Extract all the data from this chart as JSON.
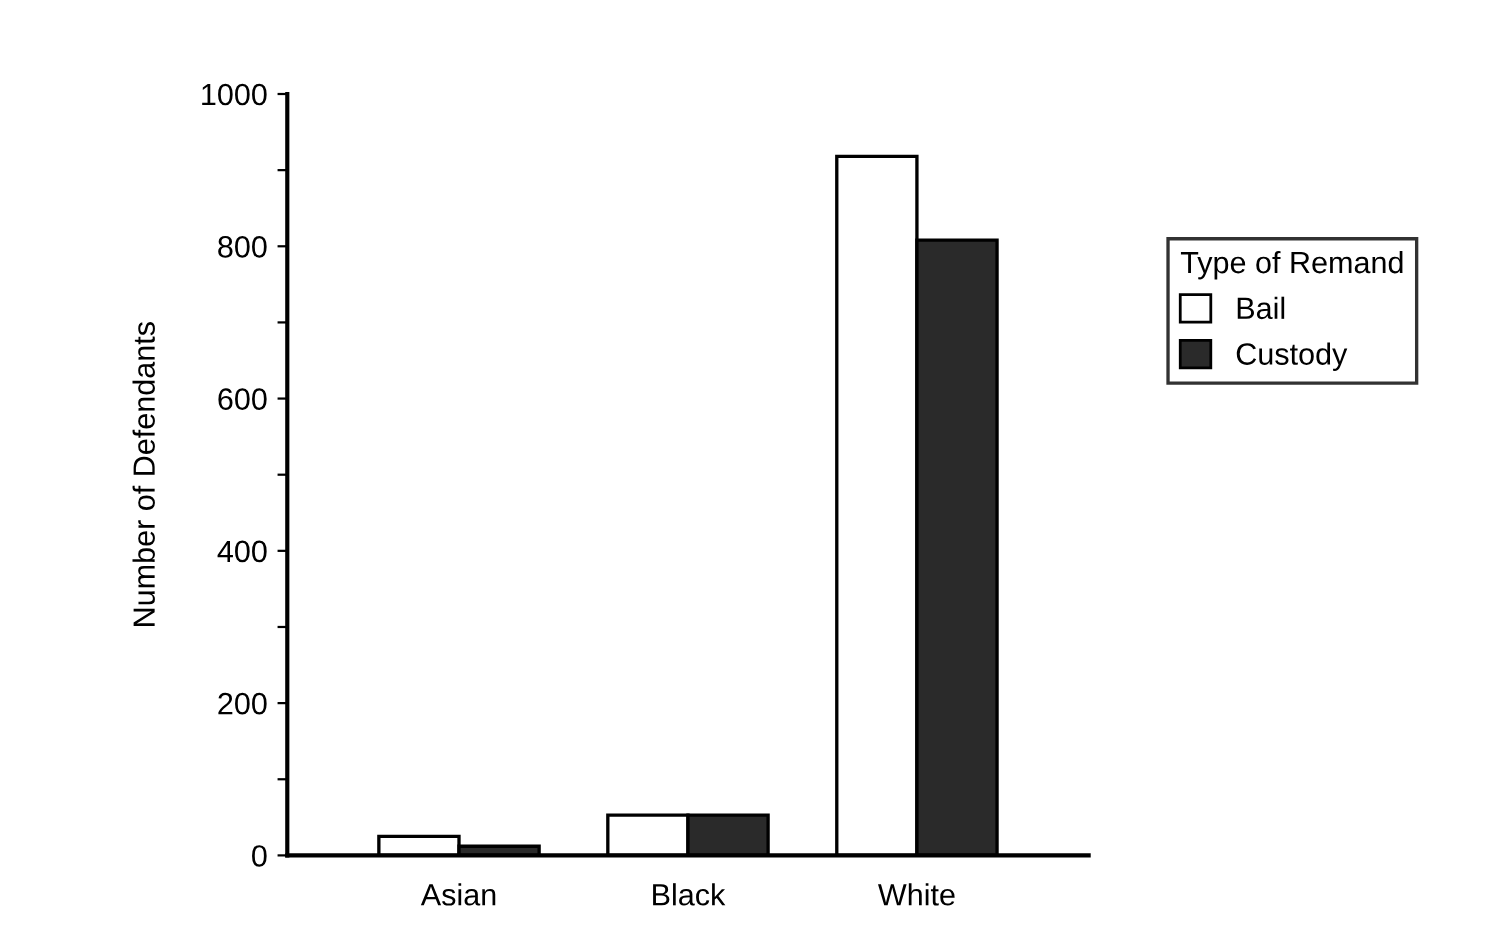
{
  "chart_data": {
    "type": "bar",
    "ylabel": "Number of Defendants",
    "legend_title": "Type of Remand",
    "categories": [
      "Asian",
      "Black",
      "White"
    ],
    "series": [
      {
        "name": "Bail",
        "color": "#ffffff",
        "values": [
          25,
          53,
          918
        ]
      },
      {
        "name": "Custody",
        "color": "#2a2a2a",
        "values": [
          12,
          53,
          808
        ]
      }
    ],
    "ylim": [
      0,
      1000
    ],
    "yticks": [
      0,
      {
        "value": 100,
        "label": null
      },
      200,
      {
        "value": 300,
        "label": null
      },
      400,
      {
        "value": 500,
        "label": null
      },
      600,
      {
        "value": 700,
        "label": null
      },
      800,
      {
        "value": 900,
        "label": null
      },
      1000
    ],
    "grid": false,
    "legend": "right"
  }
}
